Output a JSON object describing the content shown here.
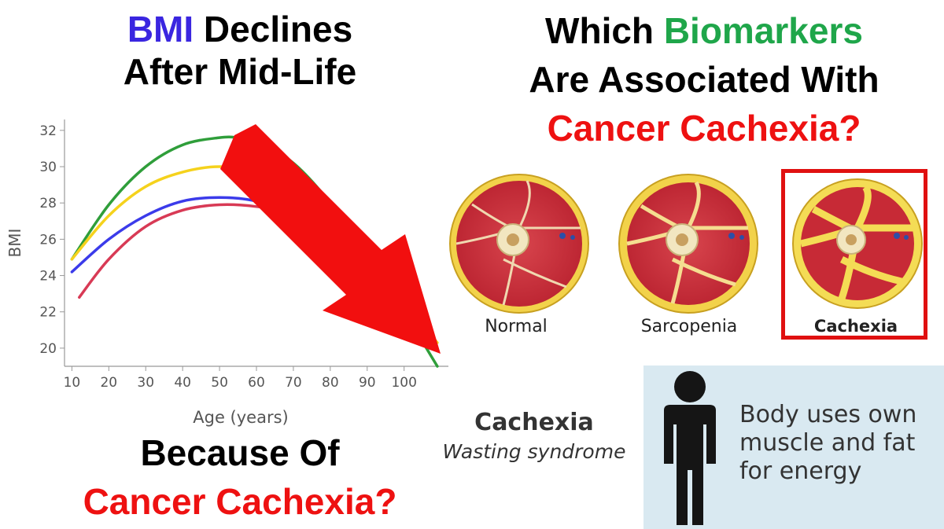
{
  "left_title": {
    "accent": "BMI",
    "line1_rest": " Declines",
    "line2": "After Mid-Life"
  },
  "right_title": {
    "line1_prefix": "Which ",
    "line1_accent": "Biomarkers",
    "line2": "Are Associated With",
    "line3": "Cancer Cachexia?"
  },
  "bottom_left": {
    "line1": "Because Of",
    "line2": "Cancer Cachexia?"
  },
  "muscles": {
    "normal": "Normal",
    "sarcopenia": "Sarcopenia",
    "cachexia": "Cachexia"
  },
  "definition": {
    "term": "Cachexia",
    "subtitle": "Wasting syndrome",
    "description": "Body uses own muscle and fat for energy"
  },
  "colors": {
    "accent_blue": "#3a26e0",
    "accent_green": "#1fa64a",
    "accent_red": "#ee1111",
    "arrow_red": "#f20f0f",
    "info_bg": "#d9e9f1"
  },
  "chart_data": {
    "type": "line",
    "xlabel": "Age (years)",
    "ylabel": "BMI",
    "xlim": [
      8,
      112
    ],
    "ylim": [
      19,
      32.6
    ],
    "xticks": [
      10,
      20,
      30,
      40,
      50,
      60,
      70,
      80,
      90,
      100
    ],
    "yticks": [
      20,
      22,
      24,
      26,
      28,
      30,
      32
    ],
    "grid": false,
    "series": [
      {
        "color": "#2f9e3a",
        "x": [
          10,
          20,
          30,
          40,
          50,
          55,
          60,
          70,
          80,
          90,
          100,
          109
        ],
        "y": [
          24.9,
          27.9,
          30.0,
          31.2,
          31.6,
          31.6,
          31.4,
          30.2,
          28.0,
          25.1,
          22.0,
          19.0
        ]
      },
      {
        "color": "#f5d21c",
        "x": [
          10,
          20,
          30,
          40,
          50,
          60,
          70,
          80,
          90,
          100,
          109
        ],
        "y": [
          24.9,
          27.3,
          28.9,
          29.7,
          30.0,
          29.7,
          28.7,
          27.0,
          24.7,
          22.5,
          20.3
        ]
      },
      {
        "color": "#3b3bea",
        "x": [
          10,
          20,
          30,
          40,
          50,
          60,
          70,
          80,
          90
        ],
        "y": [
          24.2,
          26.0,
          27.3,
          28.1,
          28.3,
          28.1,
          27.4,
          26.2,
          24.9
        ]
      },
      {
        "color": "#d83a55",
        "x": [
          12,
          20,
          30,
          40,
          50,
          60,
          70
        ],
        "y": [
          22.8,
          24.9,
          26.7,
          27.6,
          27.9,
          27.8,
          27.4
        ]
      }
    ]
  }
}
